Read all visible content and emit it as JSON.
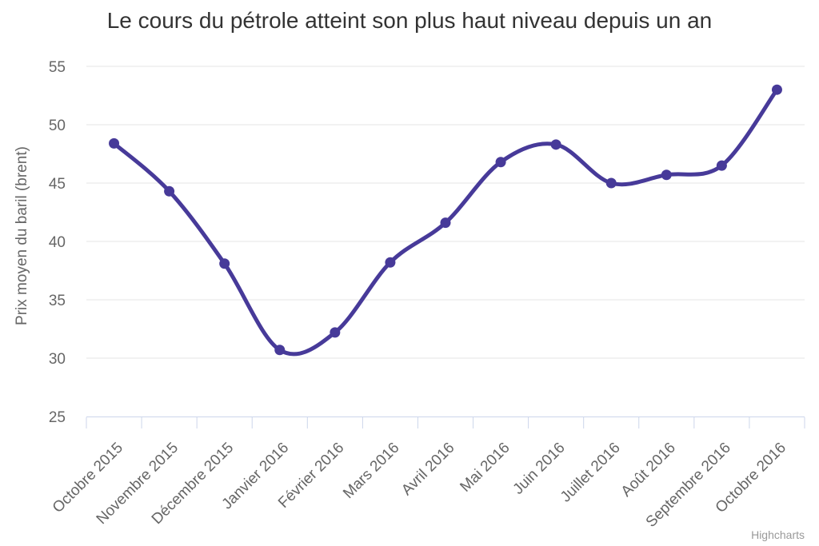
{
  "title": "Le cours du pétrole atteint son plus haut niveau depuis un an",
  "credits": {
    "label": "Highcharts"
  },
  "chart_data": {
    "type": "line",
    "smooth": true,
    "title": "Le cours du pétrole atteint son plus haut niveau depuis un an",
    "xlabel": "",
    "ylabel": "Prix moyen du baril (brent)",
    "categories": [
      "Octobre 2015",
      "Novembre 2015",
      "Décembre 2015",
      "Janvier 2016",
      "Février 2016",
      "Mars 2016",
      "Avril 2016",
      "Mai 2016",
      "Juin 2016",
      "Juillet 2016",
      "Août 2016",
      "Septembre 2016",
      "Octobre 2016"
    ],
    "values": [
      48.4,
      44.3,
      38.1,
      30.7,
      32.2,
      38.2,
      41.6,
      46.8,
      48.3,
      45.0,
      45.7,
      46.5,
      53.0
    ],
    "ylim": [
      25,
      55
    ],
    "yticks": [
      25,
      30,
      35,
      40,
      45,
      50,
      55
    ],
    "grid": true,
    "legend": "none",
    "marker": "circle",
    "colors": {
      "series": "#473a99",
      "grid": "#e6e6e6",
      "axis_line": "#ccd6eb",
      "labels": "#666666",
      "title": "#333333",
      "credits": "#999999",
      "background": "#ffffff"
    }
  }
}
